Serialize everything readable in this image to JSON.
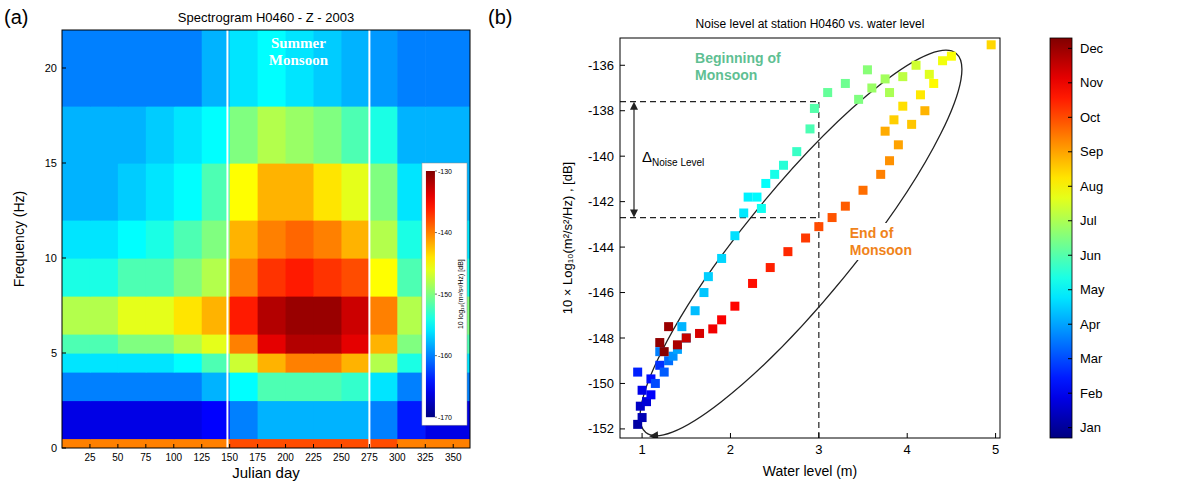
{
  "chart_data": [
    {
      "type": "heatmap",
      "panel_label": "(a)",
      "title": "Spectrogram H0460 - Z - 2003",
      "x_label": "Julian day",
      "y_label": "Frequency (Hz)",
      "xlim": [
        0,
        365
      ],
      "xticks": [
        25,
        50,
        75,
        100,
        125,
        150,
        175,
        200,
        225,
        250,
        275,
        300,
        325,
        350
      ],
      "ylim": [
        0,
        22
      ],
      "yticks": [
        0,
        5,
        10,
        15,
        20
      ],
      "x_edges": [
        0,
        25,
        50,
        75,
        100,
        125,
        150,
        175,
        200,
        225,
        250,
        275,
        300,
        325,
        365
      ],
      "y_edges": [
        0,
        0.5,
        2.5,
        4,
        5,
        6,
        8,
        10,
        12,
        15,
        18,
        22
      ],
      "cells": [
        [
          -140,
          -140,
          -140,
          -140,
          -140,
          -140,
          -138,
          -138,
          -138,
          -138,
          -138,
          -138,
          -140,
          -140
        ],
        [
          -166,
          -166,
          -166,
          -166,
          -166,
          -165,
          -160,
          -158,
          -158,
          -158,
          -158,
          -160,
          -164,
          -166
        ],
        [
          -160,
          -160,
          -160,
          -160,
          -160,
          -158,
          -155,
          -152,
          -152,
          -152,
          -153,
          -156,
          -160,
          -160
        ],
        [
          -156,
          -156,
          -156,
          -156,
          -155,
          -152,
          -147,
          -142,
          -140,
          -140,
          -142,
          -148,
          -154,
          -156
        ],
        [
          -152,
          -152,
          -150,
          -150,
          -148,
          -146,
          -140,
          -134,
          -132,
          -132,
          -134,
          -142,
          -150,
          -152
        ],
        [
          -148,
          -148,
          -146,
          -146,
          -144,
          -142,
          -136,
          -132,
          -131,
          -131,
          -133,
          -140,
          -148,
          -150
        ],
        [
          -154,
          -154,
          -152,
          -152,
          -150,
          -148,
          -140,
          -137,
          -136,
          -137,
          -138,
          -145,
          -152,
          -154
        ],
        [
          -156,
          -156,
          -155,
          -154,
          -152,
          -150,
          -142,
          -140,
          -139,
          -140,
          -142,
          -148,
          -154,
          -156
        ],
        [
          -158,
          -158,
          -157,
          -156,
          -155,
          -152,
          -145,
          -142,
          -142,
          -144,
          -146,
          -150,
          -156,
          -158
        ],
        [
          -158,
          -158,
          -158,
          -157,
          -156,
          -155,
          -150,
          -148,
          -149,
          -150,
          -152,
          -154,
          -158,
          -158
        ],
        [
          -160,
          -160,
          -160,
          -160,
          -160,
          -158,
          -156,
          -155,
          -156,
          -157,
          -158,
          -159,
          -160,
          -160
        ]
      ],
      "colorbar": {
        "label": "10 log₁₀(m²/s²/Hz) [dB]",
        "range": [
          -170,
          -130
        ],
        "ticks": [
          -170,
          -160,
          -150,
          -140,
          -130
        ]
      },
      "monsoon_bounds": [
        148,
        275
      ],
      "annotation": "Summer Monsoon"
    },
    {
      "type": "scatter",
      "panel_label": "(b)",
      "title": "Noise level at station H0460 vs. water level",
      "x_label": "Water level (m)",
      "y_label": "10 × Log₁₀(m²/s²/Hz) , [dB]",
      "xlim": [
        0.75,
        5.05
      ],
      "xticks": [
        1,
        2,
        3,
        4,
        5
      ],
      "ylim": [
        -152.4,
        -134.8
      ],
      "yticks": [
        -152,
        -150,
        -148,
        -146,
        -144,
        -142,
        -140,
        -138,
        -136
      ],
      "marker": "square",
      "x": [
        0.95,
        1.0,
        0.98,
        1.05,
        1.0,
        1.1,
        1.1,
        0.95,
        1.2,
        1.15,
        1.25,
        1.3,
        1.2,
        1.35,
        1.4,
        1.5,
        1.45,
        1.6,
        1.7,
        1.75,
        1.9,
        2.05,
        2.15,
        2.2,
        2.3,
        2.4,
        2.35,
        2.5,
        2.6,
        2.75,
        2.9,
        2.95,
        3.1,
        3.3,
        3.45,
        3.55,
        3.6,
        3.75,
        3.8,
        3.95,
        4.1,
        4.25,
        4.4,
        4.5,
        4.3,
        4.15,
        3.95,
        3.85,
        4.05,
        4.2,
        3.75,
        3.9,
        3.8,
        3.7,
        3.5,
        3.3,
        3.15,
        3.0,
        2.85,
        2.65,
        2.45,
        2.25,
        2.05,
        1.9,
        1.8,
        1.65,
        1.5,
        1.4,
        1.3,
        1.2,
        1.25,
        4.95
      ],
      "y": [
        -151.8,
        -151.5,
        -151,
        -150.8,
        -150.3,
        -150.5,
        -149.8,
        -149.5,
        -149.2,
        -150,
        -149.5,
        -149,
        -148.6,
        -148.8,
        -148.5,
        -148,
        -147.5,
        -146.8,
        -146,
        -145.3,
        -144.5,
        -143.5,
        -142.5,
        -141.8,
        -141.8,
        -141.2,
        -142.3,
        -140.8,
        -140.4,
        -139.8,
        -138.8,
        -137.9,
        -137.2,
        -136.8,
        -137.5,
        -136.2,
        -137,
        -136.6,
        -137.2,
        -136.5,
        -136,
        -136.4,
        -135.8,
        -135.6,
        -136.8,
        -137.3,
        -137.8,
        -138.4,
        -138.6,
        -138,
        -138.9,
        -139.5,
        -140.2,
        -140.8,
        -141.5,
        -142.2,
        -142.7,
        -143.1,
        -143.6,
        -144.2,
        -144.9,
        -145.6,
        -146.6,
        -147.2,
        -147.6,
        -147.8,
        -148,
        -148.3,
        -147.5,
        -148.2,
        -148.6,
        -135.1
      ],
      "month": [
        0.1,
        0.3,
        0.5,
        0.7,
        0.9,
        1.1,
        1.3,
        1.5,
        1.7,
        2.0,
        2.2,
        2.4,
        2.6,
        2.8,
        3.0,
        3.1,
        3.2,
        3.3,
        3.4,
        3.5,
        3.6,
        3.7,
        3.8,
        3.9,
        4.0,
        4.1,
        4.2,
        4.3,
        4.5,
        4.7,
        4.9,
        5.0,
        5.2,
        5.3,
        5.5,
        5.6,
        5.8,
        5.9,
        6.0,
        6.2,
        6.4,
        6.6,
        6.8,
        6.9,
        7.0,
        7.2,
        7.3,
        7.5,
        7.6,
        7.8,
        7.9,
        8.0,
        8.2,
        8.4,
        8.6,
        8.8,
        8.9,
        9.0,
        9.2,
        9.4,
        9.5,
        9.7,
        9.8,
        9.9,
        10.0,
        10.3,
        10.5,
        10.8,
        11.0,
        11.1,
        11.2,
        7.4
      ],
      "colorbar": {
        "range": [
          -0.3,
          11.3
        ],
        "ticks": [
          {
            "value": 0,
            "label": "Jan"
          },
          {
            "value": 1,
            "label": "Feb"
          },
          {
            "value": 2,
            "label": "Mar"
          },
          {
            "value": 3,
            "label": "Apr"
          },
          {
            "value": 4,
            "label": "May"
          },
          {
            "value": 5,
            "label": "Jun"
          },
          {
            "value": 6,
            "label": "Jul"
          },
          {
            "value": 7,
            "label": "Aug"
          },
          {
            "value": 8,
            "label": "Sep"
          },
          {
            "value": 9,
            "label": "Oct"
          },
          {
            "value": 10,
            "label": "Nov"
          },
          {
            "value": 11,
            "label": "Dec"
          }
        ]
      },
      "annotations": [
        {
          "text": "Beginning of Monsoon",
          "color": "#5fbf93"
        },
        {
          "text": "End of Monsoon",
          "color": "#f0831a"
        }
      ],
      "reference": {
        "x": 3,
        "y_begin": -137.6,
        "y_end": -142.7,
        "symbol": "Δ",
        "subscript": "Noise Level"
      }
    }
  ]
}
